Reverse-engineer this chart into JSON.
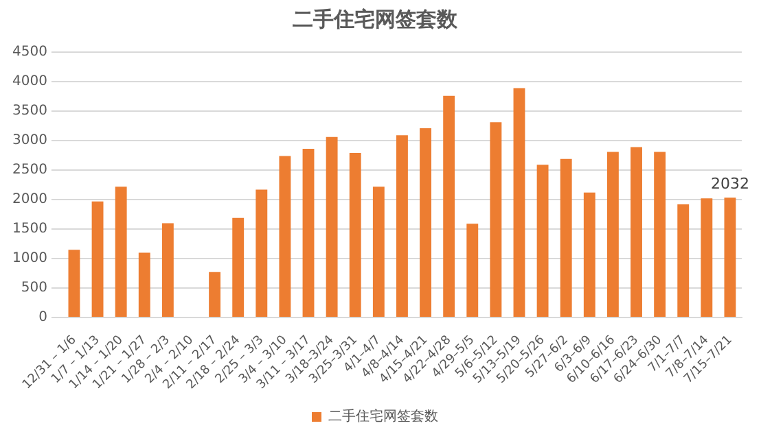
{
  "chart_data": {
    "type": "bar",
    "title": "二手住宅网签套数",
    "categories": [
      "12/31 – 1/6",
      "1/7 – 1/13",
      "1/14 – 1/20",
      "1/21 – 1/27",
      "1/28 – 2/3",
      "2/4 – 2/10",
      "2/11 – 2/17",
      "2/18 – 2/24",
      "2/25 – 3/3",
      "3/4 – 3/10",
      "3/11 – 3/17",
      "3/18–3/24",
      "3/25–3/31",
      "4/1–4/7",
      "4/8–4/14",
      "4/15–4/21",
      "4/22–4/28",
      "4/29–5/5",
      "5/6–5/12",
      "5/13–5/19",
      "5/20–5/26",
      "5/27–6/2",
      "6/3–6/9",
      "6/10–6/16",
      "6/17–6/23",
      "6/24–6/30",
      "7/1–7/7",
      "7/8–7/14",
      "7/15–7/21"
    ],
    "series": [
      {
        "name": "二手住宅网签套数",
        "color": "#ed7d31",
        "values": [
          1150,
          1970,
          2220,
          1100,
          1600,
          null,
          770,
          1690,
          2170,
          2740,
          2860,
          3060,
          2790,
          2220,
          3090,
          3210,
          3760,
          1590,
          3310,
          3890,
          2590,
          2690,
          2120,
          2810,
          2890,
          2810,
          1920,
          2020,
          2032
        ],
        "value_labels": [
          null,
          null,
          null,
          null,
          null,
          null,
          null,
          null,
          null,
          null,
          null,
          null,
          null,
          null,
          null,
          null,
          null,
          null,
          null,
          null,
          null,
          null,
          null,
          null,
          null,
          null,
          null,
          null,
          "2032"
        ]
      }
    ],
    "ylim": [
      0,
      4500
    ],
    "yticks": [
      0,
      500,
      1000,
      1500,
      2000,
      2500,
      3000,
      3500,
      4000,
      4500
    ],
    "grid": "y",
    "legend": "bottom"
  }
}
